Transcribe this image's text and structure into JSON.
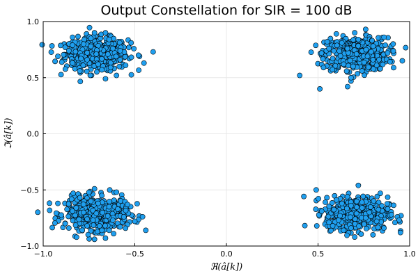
{
  "chart_data": {
    "type": "scatter",
    "title": "Output Constellation for SIR = 100 dB",
    "xlabel": "ℜ(â[k])",
    "ylabel": "ℑ(â[k])",
    "xlim": [
      -1.0,
      1.0
    ],
    "ylim": [
      -1.0,
      1.0
    ],
    "xticks": [
      -1.0,
      -0.5,
      0.0,
      0.5,
      1.0
    ],
    "yticks": [
      -1.0,
      -0.5,
      0.0,
      0.5,
      1.0
    ],
    "xtick_labels": [
      "−1.0",
      "−0.5",
      "0.0",
      "0.5",
      "1.0"
    ],
    "ytick_labels": [
      "−1.0",
      "−0.5",
      "0.0",
      "0.5",
      "1.0"
    ],
    "grid": true,
    "legend": "none",
    "marker_color": "#1f9fef",
    "clusters": [
      {
        "center": [
          -0.71,
          0.71
        ]
      },
      {
        "center": [
          0.71,
          0.71
        ]
      },
      {
        "center": [
          -0.71,
          -0.71
        ]
      },
      {
        "center": [
          0.71,
          -0.71
        ]
      }
    ],
    "series": [
      {
        "x": [
          -0.71,
          -0.92,
          -0.86,
          -0.84,
          -0.78,
          -0.74,
          -0.7,
          -0.66,
          -0.62,
          -0.58,
          -0.52,
          -0.48,
          -0.45,
          -0.4,
          -0.55,
          -0.6,
          -0.66,
          -0.72,
          -0.8,
          -0.88,
          -0.76,
          -0.64,
          -0.68,
          -0.84,
          -0.58,
          -0.74
        ],
        "y": [
          0.71,
          0.69,
          0.74,
          0.63,
          0.8,
          0.85,
          0.62,
          0.9,
          0.76,
          0.66,
          0.81,
          0.7,
          0.63,
          0.73,
          0.61,
          0.52,
          0.49,
          0.9,
          0.56,
          0.77,
          0.66,
          0.84,
          0.57,
          0.86,
          0.74,
          0.78
        ]
      },
      {
        "x": [
          0.71,
          0.4,
          0.51,
          0.53,
          0.56,
          0.6,
          0.64,
          0.68,
          0.72,
          0.76,
          0.8,
          0.84,
          0.88,
          0.91,
          0.96,
          0.66,
          0.74,
          0.58,
          0.86,
          0.63,
          0.7,
          0.79,
          0.55,
          0.82,
          0.68,
          0.77
        ],
        "y": [
          0.71,
          0.52,
          0.4,
          0.59,
          0.76,
          0.89,
          0.62,
          0.47,
          0.84,
          0.93,
          0.66,
          0.58,
          0.72,
          0.8,
          0.65,
          0.76,
          0.56,
          0.67,
          0.86,
          0.81,
          0.9,
          0.73,
          0.82,
          0.61,
          0.5,
          0.69
        ]
      },
      {
        "x": [
          -0.71,
          -0.92,
          -0.88,
          -0.84,
          -0.8,
          -0.76,
          -0.72,
          -0.68,
          -0.64,
          -0.6,
          -0.56,
          -0.5,
          -0.44,
          -0.86,
          -0.66,
          -0.74,
          -0.58,
          -0.78,
          -0.62,
          -0.7,
          -0.82,
          -0.54,
          -0.68,
          -0.76,
          -0.64,
          -0.72
        ],
        "y": [
          -0.71,
          -0.62,
          -0.8,
          -0.69,
          -0.57,
          -0.76,
          -0.49,
          -0.86,
          -0.65,
          -0.52,
          -0.74,
          -0.78,
          -0.86,
          -0.84,
          -0.93,
          -0.6,
          -0.83,
          -0.7,
          -0.77,
          -0.62,
          -0.66,
          -0.63,
          -0.55,
          -0.82,
          -0.86,
          -0.94
        ]
      },
      {
        "x": [
          0.71,
          0.49,
          0.52,
          0.56,
          0.6,
          0.64,
          0.68,
          0.72,
          0.76,
          0.8,
          0.84,
          0.88,
          0.92,
          0.95,
          0.62,
          0.7,
          0.74,
          0.58,
          0.86,
          0.66,
          0.78,
          0.54,
          0.82,
          0.68,
          0.74,
          0.9
        ],
        "y": [
          -0.71,
          -0.5,
          -0.69,
          -0.79,
          -0.59,
          -0.86,
          -0.64,
          -0.46,
          -0.75,
          -0.9,
          -0.53,
          -0.67,
          -0.79,
          -0.88,
          -0.73,
          -0.92,
          -0.61,
          -0.82,
          -0.84,
          -0.56,
          -0.7,
          -0.61,
          -0.78,
          -0.84,
          -0.66,
          -0.72
        ]
      }
    ]
  }
}
